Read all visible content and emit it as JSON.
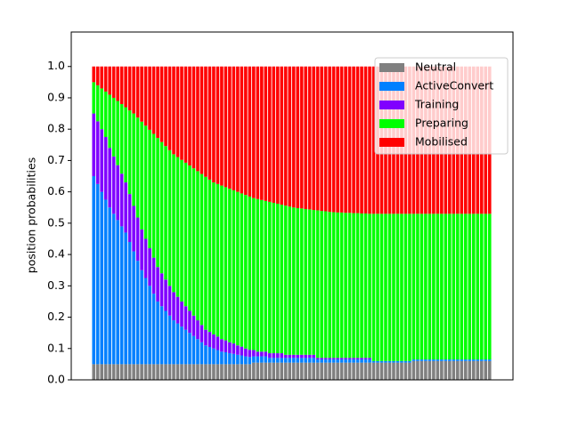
{
  "chart_data": {
    "type": "stacked_bar",
    "y_label": "position probabilities",
    "ylim": [
      0,
      1.11
    ],
    "yticks": [
      {
        "value": 0,
        "label": "0.0"
      },
      {
        "value": 0.1,
        "label": "0.1"
      },
      {
        "value": 0.2,
        "label": "0.2"
      },
      {
        "value": 0.3,
        "label": "0.3"
      },
      {
        "value": 0.4,
        "label": "0.4"
      },
      {
        "value": 0.5,
        "label": "0.5"
      },
      {
        "value": 0.6,
        "label": "0.6"
      },
      {
        "value": 0.7,
        "label": "0.7"
      },
      {
        "value": 0.8,
        "label": "0.8"
      },
      {
        "value": 0.9,
        "label": "0.9"
      },
      {
        "value": 1,
        "label": "1.0"
      }
    ],
    "legend": "upper right",
    "series": [
      {
        "name": "Neutral",
        "color": "#808080",
        "values": [
          0.05,
          0.05,
          0.05,
          0.05,
          0.05,
          0.05,
          0.05,
          0.05,
          0.05,
          0.05,
          0.05,
          0.05,
          0.05,
          0.05,
          0.05,
          0.05,
          0.05,
          0.05,
          0.05,
          0.05,
          0.05,
          0.05,
          0.05,
          0.05,
          0.05,
          0.05,
          0.05,
          0.05,
          0.05,
          0.05,
          0.05,
          0.05,
          0.05,
          0.05,
          0.05,
          0.05,
          0.05,
          0.05,
          0.05,
          0.05,
          0.055,
          0.055,
          0.055,
          0.055,
          0.055,
          0.055,
          0.055,
          0.055,
          0.055,
          0.055,
          0.055,
          0.055,
          0.055,
          0.055,
          0.055,
          0.055,
          0.055,
          0.055,
          0.055,
          0.055,
          0.055,
          0.055,
          0.055,
          0.055,
          0.055,
          0.055,
          0.055,
          0.055,
          0.055,
          0.055,
          0.055,
          0.055,
          0.055,
          0.055,
          0.055,
          0.055,
          0.055,
          0.055,
          0.055,
          0.055,
          0.06,
          0.06,
          0.06,
          0.06,
          0.06,
          0.06,
          0.06,
          0.06,
          0.06,
          0.06,
          0.06,
          0.06,
          0.06,
          0.06,
          0.06,
          0.06,
          0.06,
          0.06,
          0.06,
          0.06
        ]
      },
      {
        "name": "ActiveConvert",
        "color": "#0080ff",
        "values": [
          0.6,
          0.575,
          0.55,
          0.525,
          0.5,
          0.48,
          0.46,
          0.44,
          0.42,
          0.39,
          0.36,
          0.33,
          0.3,
          0.275,
          0.25,
          0.225,
          0.2,
          0.185,
          0.17,
          0.155,
          0.14,
          0.13,
          0.12,
          0.11,
          0.1,
          0.09,
          0.08,
          0.07,
          0.06,
          0.055,
          0.05,
          0.045,
          0.04,
          0.038,
          0.035,
          0.033,
          0.03,
          0.028,
          0.025,
          0.023,
          0.02,
          0.02,
          0.02,
          0.02,
          0.015,
          0.015,
          0.015,
          0.015,
          0.015,
          0.015,
          0.015,
          0.015,
          0.015,
          0.015,
          0.015,
          0.015,
          0.01,
          0.01,
          0.01,
          0.01,
          0.01,
          0.01,
          0.01,
          0.01,
          0.01,
          0.01,
          0.01,
          0.01,
          0.01,
          0.01,
          0.005,
          0.005,
          0.005,
          0.005,
          0.005,
          0.005,
          0.005,
          0.005,
          0.005,
          0.005,
          0.005,
          0.005,
          0.005,
          0.005,
          0.005,
          0.005,
          0.005,
          0.005,
          0.005,
          0.005,
          0.005,
          0.005,
          0.005,
          0.005,
          0.005,
          0.005,
          0.005,
          0.005,
          0.005,
          0.005
        ]
      },
      {
        "name": "Training",
        "color": "#8000ff",
        "values": [
          0.2,
          0.2,
          0.2,
          0.2,
          0.19,
          0.183,
          0.175,
          0.168,
          0.16,
          0.153,
          0.145,
          0.138,
          0.13,
          0.125,
          0.12,
          0.115,
          0.11,
          0.105,
          0.1,
          0.095,
          0.09,
          0.085,
          0.08,
          0.075,
          0.07,
          0.065,
          0.06,
          0.055,
          0.05,
          0.048,
          0.045,
          0.043,
          0.04,
          0.038,
          0.035,
          0.033,
          0.03,
          0.028,
          0.025,
          0.023,
          0.02,
          0.015,
          0.015,
          0.015,
          0.015,
          0.015,
          0.015,
          0.015,
          0.01,
          0.01,
          0.01,
          0.01,
          0.01,
          0.01,
          0.01,
          0.01,
          0.005,
          0.005,
          0.005,
          0.005,
          0.005,
          0.005,
          0.005,
          0.005,
          0.005,
          0.005,
          0.005,
          0.005,
          0.005,
          0.005,
          0,
          0,
          0,
          0,
          0,
          0,
          0,
          0,
          0,
          0,
          0,
          0,
          0,
          0,
          0,
          0,
          0,
          0,
          0,
          0,
          0,
          0,
          0,
          0,
          0,
          0,
          0,
          0,
          0,
          0
        ]
      },
      {
        "name": "Preparing",
        "color": "#00ff00",
        "values": [
          0.1,
          0.115,
          0.13,
          0.145,
          0.17,
          0.187,
          0.205,
          0.222,
          0.24,
          0.267,
          0.295,
          0.319,
          0.344,
          0.361,
          0.378,
          0.395,
          0.412,
          0.419,
          0.426,
          0.433,
          0.44,
          0.446,
          0.452,
          0.458,
          0.464,
          0.47,
          0.476,
          0.482,
          0.488,
          0.486,
          0.485,
          0.487,
          0.49,
          0.489,
          0.49,
          0.489,
          0.49,
          0.489,
          0.49,
          0.489,
          0.485,
          0.487,
          0.484,
          0.481,
          0.483,
          0.48,
          0.477,
          0.474,
          0.476,
          0.473,
          0.47,
          0.468,
          0.467,
          0.465,
          0.464,
          0.462,
          0.471,
          0.469,
          0.468,
          0.466,
          0.465,
          0.464,
          0.464,
          0.463,
          0.463,
          0.462,
          0.462,
          0.461,
          0.461,
          0.46,
          0.47,
          0.47,
          0.47,
          0.47,
          0.47,
          0.47,
          0.47,
          0.47,
          0.47,
          0.47,
          0.465,
          0.465,
          0.465,
          0.465,
          0.465,
          0.465,
          0.465,
          0.465,
          0.465,
          0.465,
          0.465,
          0.465,
          0.465,
          0.465,
          0.465,
          0.465,
          0.465,
          0.465,
          0.465,
          0.465
        ]
      },
      {
        "name": "Mobilised",
        "color": "#ff0000",
        "values": [
          0.05,
          0.06,
          0.07,
          0.08,
          0.09,
          0.1,
          0.11,
          0.12,
          0.13,
          0.14,
          0.15,
          0.163,
          0.176,
          0.189,
          0.202,
          0.215,
          0.228,
          0.241,
          0.254,
          0.267,
          0.28,
          0.289,
          0.298,
          0.307,
          0.316,
          0.325,
          0.334,
          0.343,
          0.352,
          0.361,
          0.37,
          0.375,
          0.38,
          0.385,
          0.39,
          0.395,
          0.4,
          0.405,
          0.41,
          0.415,
          0.42,
          0.423,
          0.426,
          0.429,
          0.432,
          0.435,
          0.438,
          0.441,
          0.444,
          0.447,
          0.45,
          0.452,
          0.453,
          0.455,
          0.456,
          0.458,
          0.459,
          0.461,
          0.462,
          0.464,
          0.465,
          0.466,
          0.466,
          0.467,
          0.467,
          0.468,
          0.468,
          0.469,
          0.469,
          0.47,
          0.47,
          0.47,
          0.47,
          0.47,
          0.47,
          0.47,
          0.47,
          0.47,
          0.47,
          0.47,
          0.47,
          0.47,
          0.47,
          0.47,
          0.47,
          0.47,
          0.47,
          0.47,
          0.47,
          0.47,
          0.47,
          0.47,
          0.47,
          0.47,
          0.47,
          0.47,
          0.47,
          0.47,
          0.47,
          0.47
        ]
      }
    ]
  }
}
